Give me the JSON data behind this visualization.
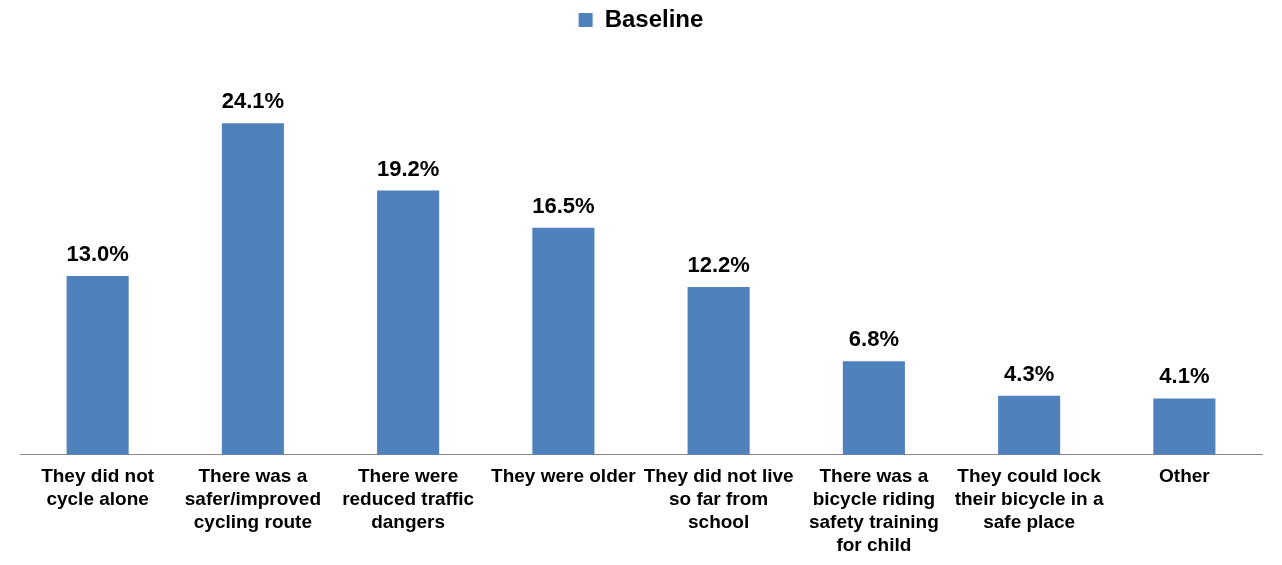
{
  "chart_data": {
    "type": "bar",
    "categories": [
      "They did not cycle alone",
      "There was a safer/improved cycling route",
      "There were reduced traffic dangers",
      "They were older",
      "They did not live so far from school",
      "There was a bicycle riding safety training for child",
      "They could lock their bicycle in a safe place",
      "Other"
    ],
    "series": [
      {
        "name": "Baseline",
        "color": "#4f81bd",
        "values": [
          13.0,
          24.1,
          19.2,
          16.5,
          12.2,
          6.8,
          4.3,
          4.1
        ],
        "value_labels": [
          "13.0%",
          "24.1%",
          "19.2%",
          "16.5%",
          "12.2%",
          "6.8%",
          "4.3%",
          "4.1%"
        ]
      }
    ],
    "legend": "top",
    "grid": false,
    "tick_labels": "x"
  }
}
